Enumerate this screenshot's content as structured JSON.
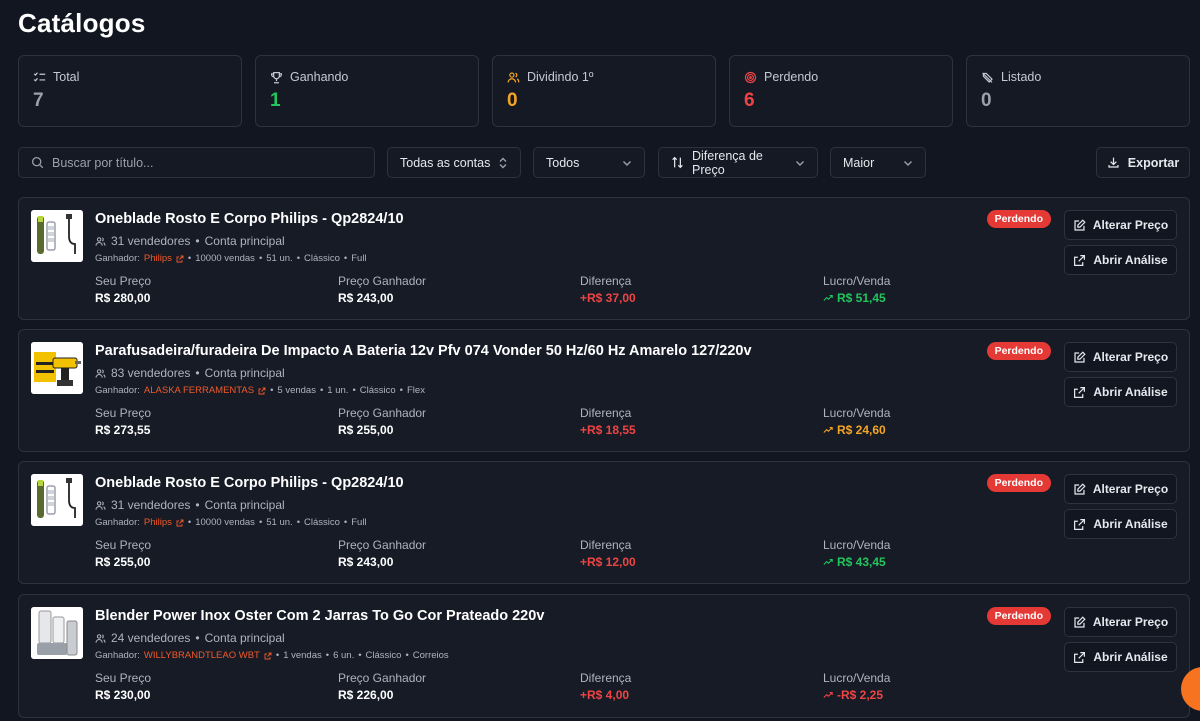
{
  "page": {
    "title": "Catálogos"
  },
  "stats": [
    {
      "label": "Total",
      "value": "7",
      "icon": "checklist-icon",
      "color": "#9aa0ac"
    },
    {
      "label": "Ganhando",
      "value": "1",
      "icon": "trophy-icon",
      "color": "#22c55e"
    },
    {
      "label": "Dividindo 1º",
      "value": "0",
      "icon": "users-icon",
      "color": "#f5a524"
    },
    {
      "label": "Perdendo",
      "value": "6",
      "icon": "target-icon",
      "color": "#ef4444"
    },
    {
      "label": "Listado",
      "value": "0",
      "icon": "no-tag-icon",
      "color": "#9aa0ac"
    }
  ],
  "filters": {
    "search_placeholder": "Buscar por título...",
    "account": "Todas as contas",
    "status": "Todos",
    "sort_field": "Diferença de Preço",
    "sort_order": "Maior",
    "export": "Exportar"
  },
  "labels": {
    "seu_preco": "Seu Preço",
    "preco_ganhador": "Preço Ganhador",
    "diferenca": "Diferença",
    "lucro_venda": "Lucro/Venda",
    "ganhador": "Ganhador:",
    "alterar_preco": "Alterar Preço",
    "abrir_analise": "Abrir Análise"
  },
  "products": [
    {
      "title": "Oneblade Rosto E Corpo Philips - Qp2824/10",
      "sellers": "31 vendedores",
      "account": "Conta principal",
      "winner": "Philips",
      "sales": "10000 vendas",
      "units": "51 un.",
      "listing": "Clássico",
      "shipping": "Full",
      "badge": "Perdendo",
      "your_price": "R$ 280,00",
      "winner_price": "R$ 243,00",
      "difference": "+R$ 37,00",
      "profit": "R$ 51,45",
      "profit_color": "#22c55e",
      "image": "shaver"
    },
    {
      "title": "Parafusadeira/furadeira De Impacto A Bateria 12v Pfv 074 Vonder 50 Hz/60 Hz Amarelo 127/220v",
      "sellers": "83 vendedores",
      "account": "Conta principal",
      "winner": "ALASKA FERRAMENTAS",
      "sales": "5 vendas",
      "units": "1 un.",
      "listing": "Clássico",
      "shipping": "Flex",
      "badge": "Perdendo",
      "your_price": "R$ 273,55",
      "winner_price": "R$ 255,00",
      "difference": "+R$ 18,55",
      "profit": "R$ 24,60",
      "profit_color": "#f5a524",
      "image": "drill"
    },
    {
      "title": "Oneblade Rosto E Corpo Philips - Qp2824/10",
      "sellers": "31 vendedores",
      "account": "Conta principal",
      "winner": "Philips",
      "sales": "10000 vendas",
      "units": "51 un.",
      "listing": "Clássico",
      "shipping": "Full",
      "badge": "Perdendo",
      "your_price": "R$ 255,00",
      "winner_price": "R$ 243,00",
      "difference": "+R$ 12,00",
      "profit": "R$ 43,45",
      "profit_color": "#22c55e",
      "image": "shaver"
    },
    {
      "title": "Blender Power Inox Oster Com 2 Jarras To Go Cor Prateado 220v",
      "sellers": "24 vendedores",
      "account": "Conta principal",
      "winner": "WILLYBRANDTLEAO WBT",
      "sales": "1 vendas",
      "units": "6 un.",
      "listing": "Clássico",
      "shipping": "Correios",
      "badge": "Perdendo",
      "your_price": "R$ 230,00",
      "winner_price": "R$ 226,00",
      "difference": "+R$ 4,00",
      "profit": "-R$ 2,25",
      "profit_color": "#ef4444",
      "image": "blender"
    }
  ]
}
